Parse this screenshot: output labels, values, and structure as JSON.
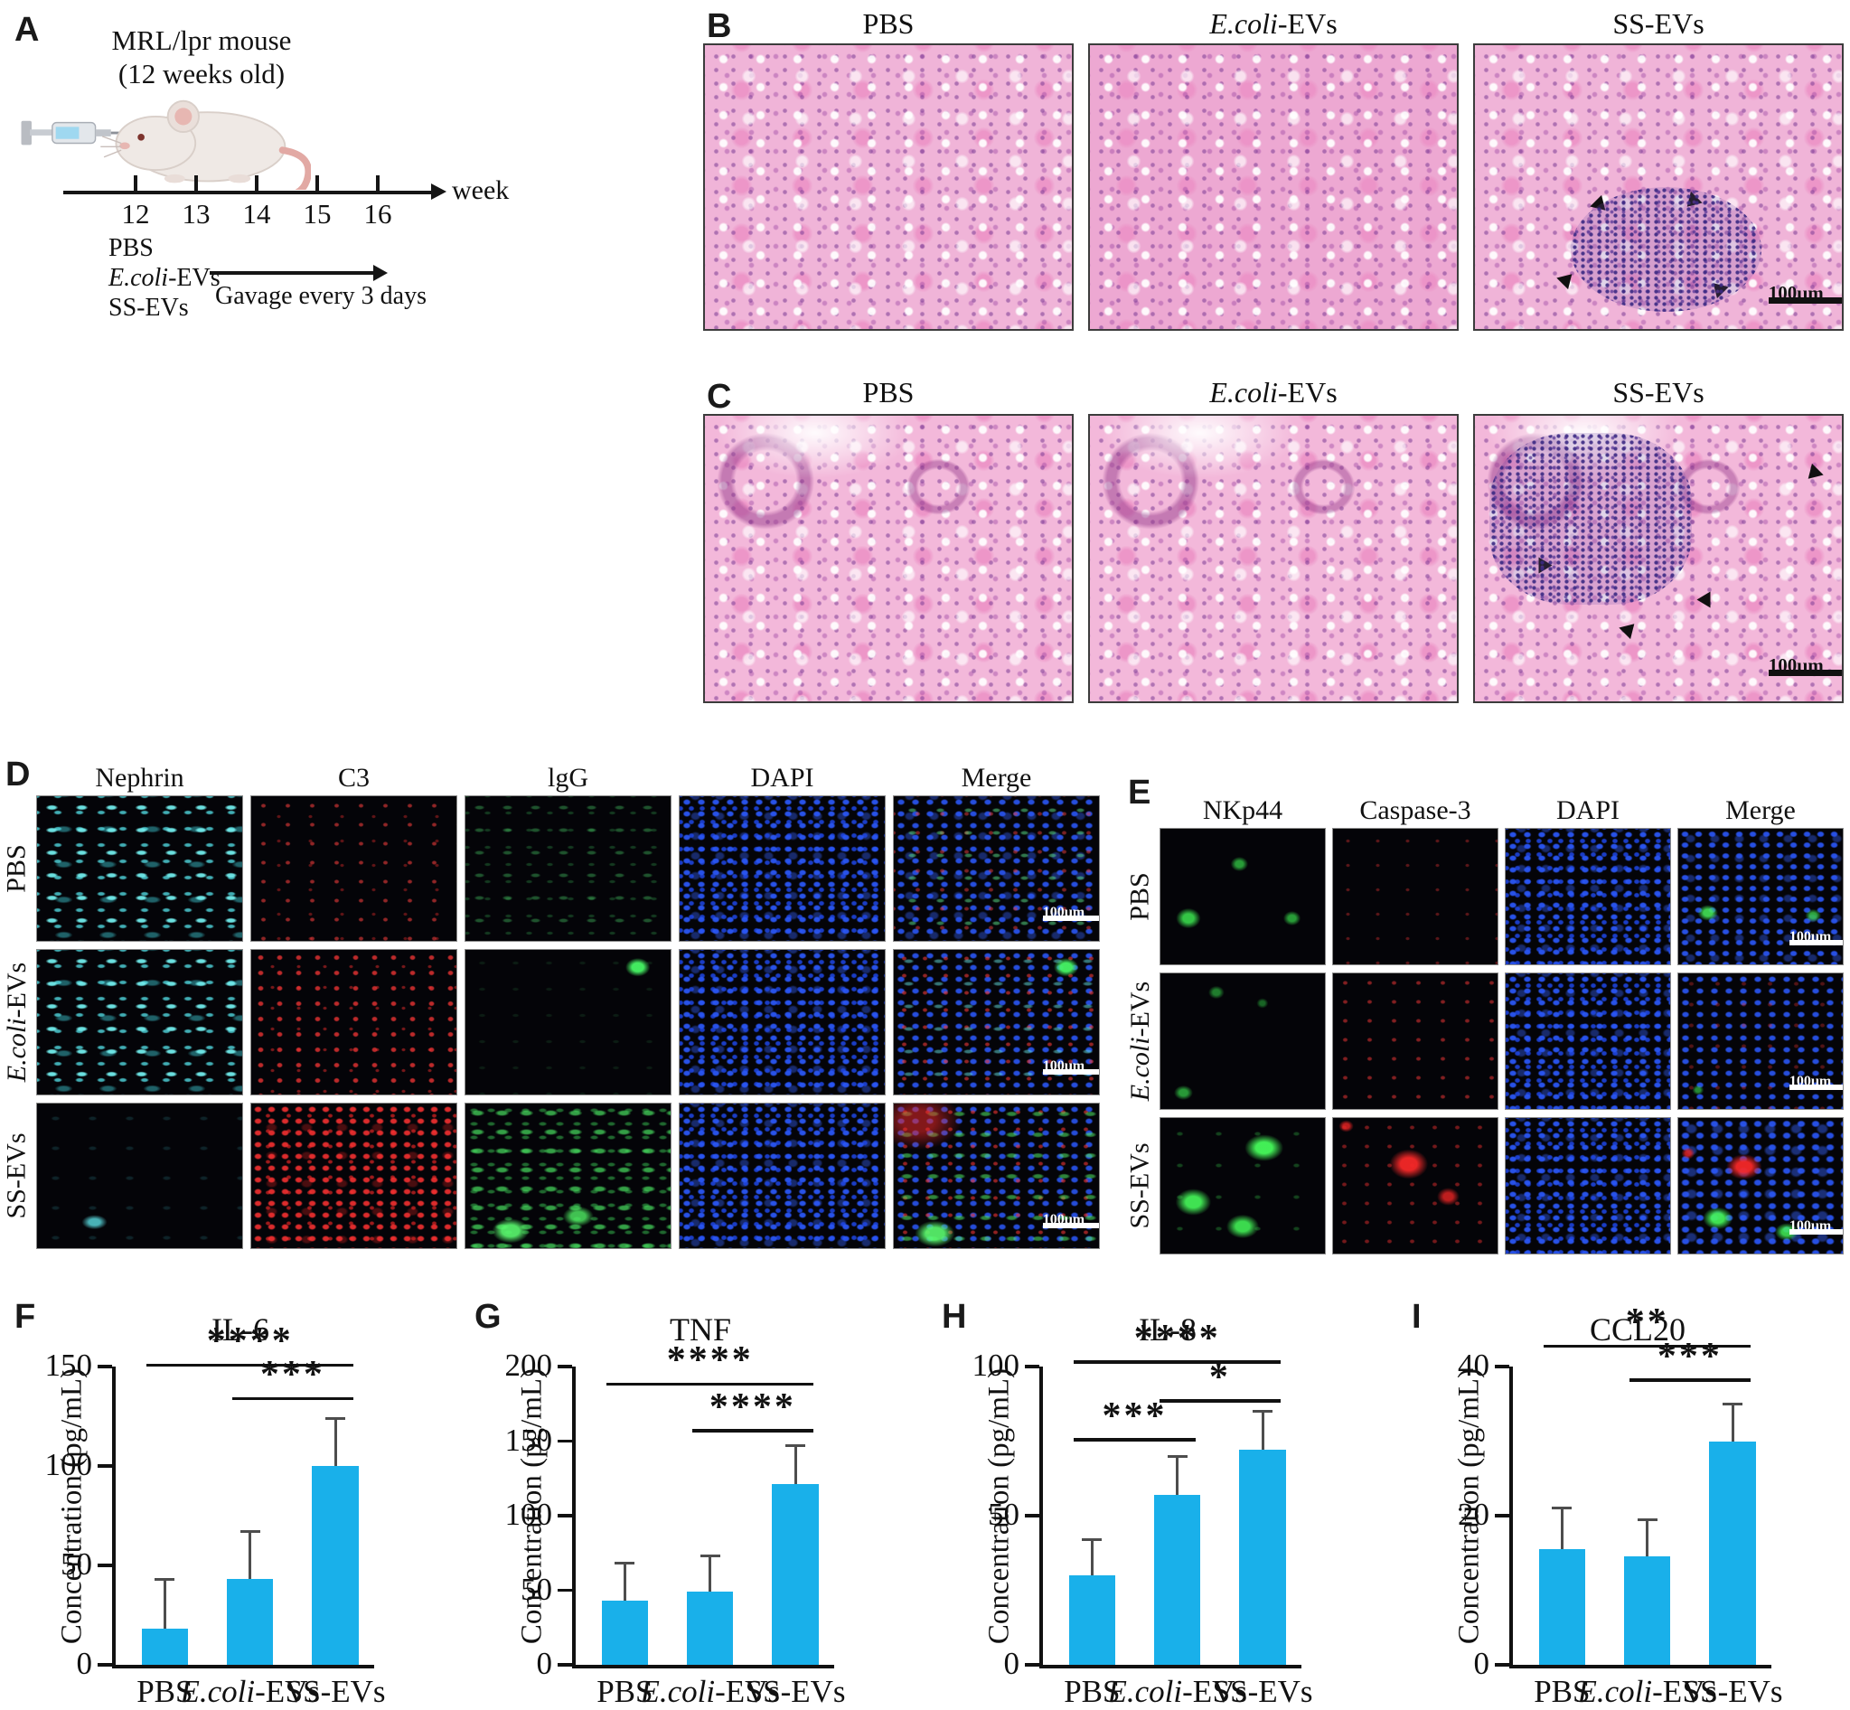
{
  "panels": {
    "a": {
      "label": "A",
      "title_line1": "MRL/lpr mouse",
      "title_line2": "(12 weeks old)",
      "weeks": [
        "12",
        "13",
        "14",
        "15",
        "16"
      ],
      "week_label": "week",
      "groups": [
        "PBS",
        "E.coli-EVs",
        "SS-EVs"
      ],
      "gavage_label": "Gavage every 3 days"
    },
    "b": {
      "label": "B",
      "columns": [
        "PBS",
        "E.coli-EVs",
        "SS-EVs"
      ],
      "scale_bar": "100μm"
    },
    "c": {
      "label": "C",
      "columns": [
        "PBS",
        "E.coli-EVs",
        "SS-EVs"
      ],
      "scale_bar": "100μm"
    },
    "d": {
      "label": "D",
      "columns": [
        "Nephrin",
        "C3",
        "lgG",
        "DAPI",
        "Merge"
      ],
      "rows": [
        "PBS",
        "E.coli-EVs",
        "SS-EVs"
      ],
      "scale_bar": "100μm"
    },
    "e": {
      "label": "E",
      "columns": [
        "NKp44",
        "Caspase-3",
        "DAPI",
        "Merge"
      ],
      "rows": [
        "PBS",
        "E.coli-EVs",
        "SS-EVs"
      ],
      "scale_bar": "100μm"
    }
  },
  "colors": {
    "bar": "#19b0ea",
    "error": "#4d4d4d",
    "axis": "#111111"
  },
  "chart_data": [
    {
      "type": "bar",
      "panel": "F",
      "title": "IL-6",
      "ylabel": "Concentration (pg/mL)",
      "categories": [
        "PBS",
        "E.coli-EVs",
        "SS-EVs"
      ],
      "values": [
        18,
        43,
        100
      ],
      "errors": [
        25,
        24,
        24
      ],
      "yticks": [
        0,
        50,
        100,
        150
      ],
      "ylim": [
        0,
        150
      ],
      "grid": false,
      "legend": "none",
      "significance": [
        {
          "from": 0,
          "to": 2,
          "y": 150,
          "stars": "****"
        },
        {
          "from": 1,
          "to": 2,
          "y": 133,
          "stars": "***"
        }
      ]
    },
    {
      "type": "bar",
      "panel": "G",
      "title": "TNF",
      "ylabel": "Concentration (pg/mL)",
      "categories": [
        "PBS",
        "E.coli-EVs",
        "SS-EVs"
      ],
      "values": [
        43,
        49,
        121
      ],
      "errors": [
        25,
        24,
        26
      ],
      "yticks": [
        0,
        50,
        100,
        150,
        200
      ],
      "ylim": [
        0,
        200
      ],
      "grid": false,
      "legend": "none",
      "significance": [
        {
          "from": 0,
          "to": 2,
          "y": 187,
          "stars": "****"
        },
        {
          "from": 1,
          "to": 2,
          "y": 156,
          "stars": "****"
        }
      ]
    },
    {
      "type": "bar",
      "panel": "H",
      "title": "IL-8",
      "ylabel": "Concentration (pg/mL)",
      "categories": [
        "PBS",
        "E.coli-EVs",
        "SS-EVs"
      ],
      "values": [
        30,
        57,
        72
      ],
      "errors": [
        12,
        13,
        13
      ],
      "yticks": [
        0,
        50,
        100
      ],
      "ylim": [
        0,
        100
      ],
      "grid": false,
      "legend": "none",
      "significance": [
        {
          "from": 0,
          "to": 2,
          "y": 101,
          "stars": "****"
        },
        {
          "from": 1,
          "to": 2,
          "y": 88,
          "stars": "*"
        },
        {
          "from": 0,
          "to": 1,
          "y": 75,
          "stars": "***"
        }
      ]
    },
    {
      "type": "bar",
      "panel": "I",
      "title": "CCL20",
      "ylabel": "Concentration (pg/mL)",
      "categories": [
        "PBS",
        "E.coli-EVs",
        "SS-EVs"
      ],
      "values": [
        15.5,
        14.5,
        30
      ],
      "errors": [
        5.5,
        5,
        5
      ],
      "yticks": [
        0,
        20,
        40
      ],
      "ylim": [
        0,
        40
      ],
      "grid": false,
      "legend": "none",
      "significance": [
        {
          "from": 0,
          "to": 2,
          "y": 42.5,
          "stars": "**"
        },
        {
          "from": 1,
          "to": 2,
          "y": 38,
          "stars": "***"
        }
      ]
    }
  ]
}
